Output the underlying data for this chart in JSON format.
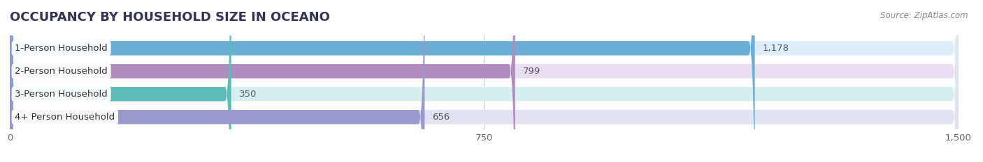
{
  "title": "OCCUPANCY BY HOUSEHOLD SIZE IN OCEANO",
  "source": "Source: ZipAtlas.com",
  "categories": [
    "1-Person Household",
    "2-Person Household",
    "3-Person Household",
    "4+ Person Household"
  ],
  "values": [
    1178,
    799,
    350,
    656
  ],
  "value_labels": [
    "1,178",
    "799",
    "350",
    "656"
  ],
  "bar_colors": [
    "#6aaed6",
    "#b08cbf",
    "#5bbcb8",
    "#9999cc"
  ],
  "bar_bg_colors": [
    "#deedf8",
    "#e8dff0",
    "#d5f0ef",
    "#e2e2f0"
  ],
  "xlim": [
    0,
    1500
  ],
  "xticks": [
    0,
    750,
    1500
  ],
  "xtick_labels": [
    "0",
    "750",
    "1,500"
  ],
  "title_fontsize": 13,
  "label_fontsize": 9.5,
  "value_fontsize": 9.5,
  "source_fontsize": 8.5,
  "background_color": "#ffffff"
}
